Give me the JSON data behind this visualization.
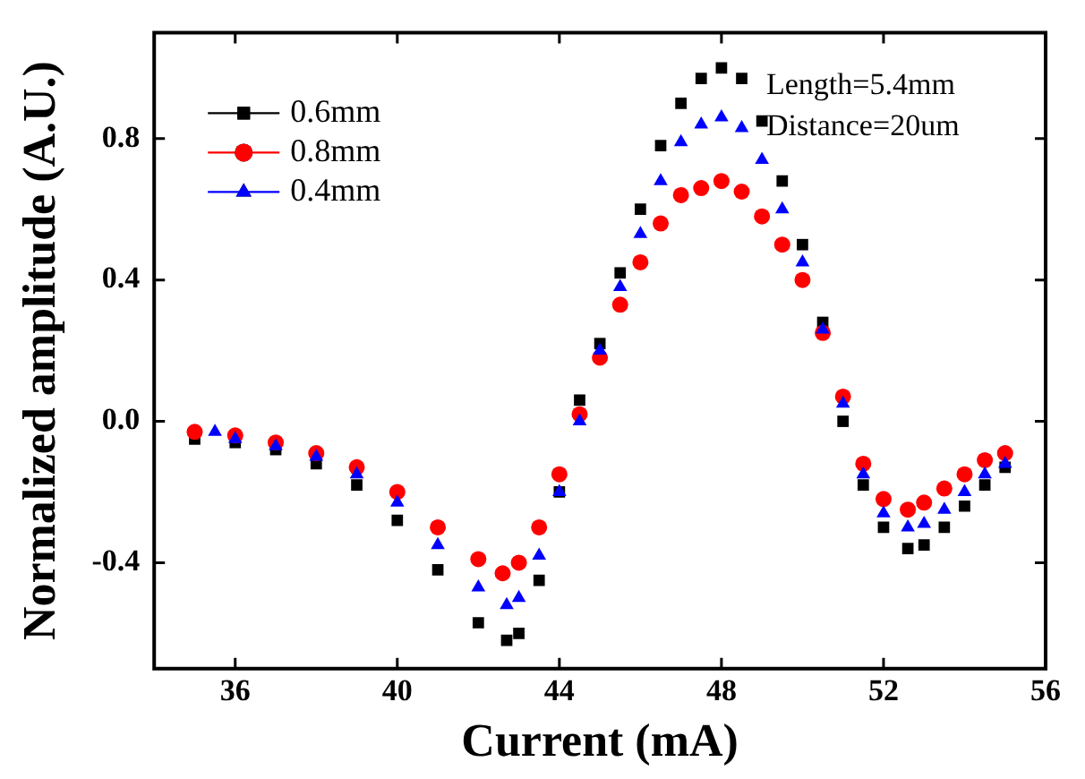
{
  "chart_data": {
    "type": "scatter",
    "xlabel": "Current (mA)",
    "ylabel": "Normalized amplitude (A.U.)",
    "xlim": [
      34,
      56
    ],
    "xticks": [
      36,
      40,
      44,
      48,
      52,
      56
    ],
    "ylim": [
      -0.7,
      1.1
    ],
    "yticks": [
      {
        "value": -0.4,
        "label": "-0.4"
      },
      {
        "value": 0,
        "label": "0.0"
      },
      {
        "value": 0.4,
        "label": "0.4"
      },
      {
        "value": 0.8,
        "label": "0.8"
      }
    ],
    "grid": false,
    "legend": "top left",
    "annotations": [
      "Length=5.4mm",
      "Distance=20um"
    ],
    "series": [
      {
        "name": "0.6mm",
        "color": "#000000",
        "marker": "square",
        "x": [
          35,
          36,
          37,
          38,
          39,
          40,
          41,
          42,
          42.7,
          43,
          43.5,
          44,
          44.5,
          45,
          45.5,
          46,
          46.5,
          47,
          47.5,
          48,
          48.5,
          49,
          49.5,
          50,
          50.5,
          51,
          51.5,
          52,
          52.6,
          53,
          53.5,
          54,
          54.5,
          55
        ],
        "values": [
          -0.05,
          -0.06,
          -0.08,
          -0.12,
          -0.18,
          -0.28,
          -0.42,
          -0.57,
          -0.62,
          -0.6,
          -0.45,
          -0.2,
          0.06,
          0.22,
          0.42,
          0.6,
          0.78,
          0.9,
          0.97,
          1.0,
          0.97,
          0.85,
          0.68,
          0.5,
          0.28,
          0.0,
          -0.18,
          -0.3,
          -0.36,
          -0.35,
          -0.3,
          -0.24,
          -0.18,
          -0.13
        ]
      },
      {
        "name": "0.8mm",
        "color": "#ff0000",
        "marker": "circle",
        "x": [
          35,
          36,
          37,
          38,
          39,
          40,
          41,
          42,
          42.6,
          43,
          43.5,
          44,
          44.5,
          45,
          45.5,
          46,
          46.5,
          47,
          47.5,
          48,
          48.5,
          49,
          49.5,
          50,
          50.5,
          51,
          51.5,
          52,
          52.6,
          53,
          53.5,
          54,
          54.5,
          55
        ],
        "values": [
          -0.03,
          -0.04,
          -0.06,
          -0.09,
          -0.13,
          -0.2,
          -0.3,
          -0.39,
          -0.43,
          -0.4,
          -0.3,
          -0.15,
          0.02,
          0.18,
          0.33,
          0.45,
          0.56,
          0.64,
          0.66,
          0.68,
          0.65,
          0.58,
          0.5,
          0.4,
          0.25,
          0.07,
          -0.12,
          -0.22,
          -0.25,
          -0.23,
          -0.19,
          -0.15,
          -0.11,
          -0.09
        ]
      },
      {
        "name": "0.4mm",
        "color": "#0000ff",
        "marker": "triangle",
        "x": [
          35.5,
          36,
          37,
          38,
          39,
          40,
          41,
          42,
          42.7,
          43,
          43.5,
          44,
          44.5,
          45,
          45.5,
          46,
          46.5,
          47,
          47.5,
          48,
          48.5,
          49,
          49.5,
          50,
          50.5,
          51,
          51.5,
          52,
          52.6,
          53,
          53.5,
          54,
          54.5,
          55
        ],
        "values": [
          -0.03,
          -0.05,
          -0.07,
          -0.1,
          -0.15,
          -0.23,
          -0.35,
          -0.47,
          -0.52,
          -0.5,
          -0.38,
          -0.2,
          0.0,
          0.2,
          0.38,
          0.53,
          0.68,
          0.79,
          0.84,
          0.86,
          0.83,
          0.74,
          0.6,
          0.45,
          0.26,
          0.05,
          -0.15,
          -0.26,
          -0.3,
          -0.29,
          -0.25,
          -0.2,
          -0.15,
          -0.12
        ]
      }
    ]
  }
}
